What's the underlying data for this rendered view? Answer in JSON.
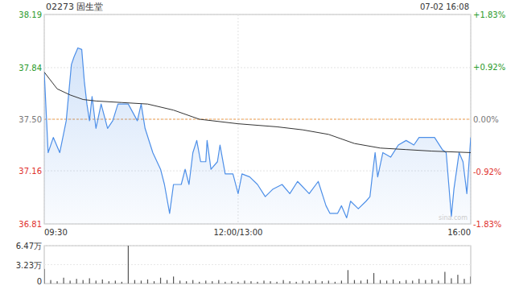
{
  "chart_data": [
    {
      "type": "line",
      "title": "02273 固生堂",
      "subtitle": "07-02 16:08",
      "x": [
        0,
        3,
        7,
        12,
        17,
        21,
        23,
        26,
        29,
        31,
        33,
        35,
        37,
        40,
        44,
        49,
        53,
        57,
        61,
        65,
        72,
        75,
        78,
        84,
        90,
        93,
        97,
        100,
        106,
        109,
        112,
        115,
        118,
        121,
        125,
        126,
        129,
        134,
        136,
        140,
        146,
        150,
        153,
        159,
        165,
        171,
        177,
        184,
        190,
        196,
        205,
        212,
        218,
        221,
        227,
        230,
        234,
        237,
        243,
        249,
        252,
        254,
        256,
        258,
        262,
        268,
        274,
        280,
        286,
        290,
        296,
        302,
        308,
        311,
        313,
        315,
        317,
        321,
        324,
        327,
        330
      ],
      "xlim": [
        0,
        330
      ],
      "xticks": [
        {
          "value": 0,
          "label": "09:30"
        },
        {
          "value": 150,
          "label": "12:00/13:00"
        },
        {
          "value": 330,
          "label": "16:00"
        }
      ],
      "ylim": [
        36.81,
        38.19
      ],
      "yticks": [
        38.19,
        37.84,
        {
          "value": 37.5,
          "label": "37.50"
        },
        37.16,
        36.81
      ],
      "y2lim": [
        -1.83,
        1.83
      ],
      "y2ticks": [
        {
          "value": 1.83,
          "label": "+1.83%"
        },
        {
          "value": 0.92,
          "label": "+0.92%"
        },
        {
          "value": 0,
          "label": "0.00%"
        },
        {
          "value": -0.92,
          "label": "-0.92%"
        },
        {
          "value": -1.83,
          "label": "-1.83%"
        }
      ],
      "grid": true,
      "annotations": [
        "sina.com"
      ],
      "series": [
        {
          "color": "#4d8fe8",
          "values": [
            37.81,
            37.28,
            37.38,
            37.28,
            37.49,
            37.86,
            37.91,
            37.97,
            37.96,
            37.75,
            37.6,
            37.49,
            37.65,
            37.44,
            37.6,
            37.44,
            37.49,
            37.6,
            37.6,
            37.6,
            37.49,
            37.6,
            37.44,
            37.28,
            37.17,
            37.07,
            36.88,
            37.07,
            37.07,
            37.17,
            37.07,
            37.28,
            37.36,
            37.22,
            37.22,
            37.36,
            37.17,
            37.22,
            37.33,
            37.14,
            37.14,
            37.01,
            37.14,
            37.12,
            37.07,
            36.99,
            37.04,
            37.07,
            37.01,
            37.09,
            37.01,
            37.09,
            36.93,
            36.88,
            36.88,
            36.93,
            36.85,
            36.96,
            36.91,
            36.96,
            36.99,
            37.14,
            37.28,
            37.12,
            37.28,
            37.25,
            37.33,
            37.36,
            37.33,
            37.38,
            37.38,
            37.38,
            37.3,
            37.28,
            37.07,
            36.86,
            37.04,
            37.28,
            37.22,
            37.01,
            37.38
          ]
        },
        {
          "color": "#333333",
          "x": [
            0,
            10,
            20,
            30,
            40,
            60,
            80,
            100,
            120,
            150,
            180,
            200,
            220,
            240,
            260,
            280,
            300,
            330
          ],
          "values": [
            37.81,
            37.7,
            37.66,
            37.63,
            37.62,
            37.61,
            37.6,
            37.56,
            37.5,
            37.47,
            37.45,
            37.43,
            37.4,
            37.34,
            37.31,
            37.3,
            37.29,
            37.28
          ]
        }
      ]
    },
    {
      "type": "bar",
      "x": [
        0,
        5,
        10,
        15,
        20,
        25,
        30,
        35,
        40,
        45,
        50,
        55,
        60,
        65,
        70,
        75,
        80,
        85,
        90,
        95,
        100,
        105,
        110,
        115,
        120,
        125,
        130,
        135,
        140,
        145,
        150,
        155,
        160,
        165,
        170,
        175,
        180,
        185,
        190,
        195,
        200,
        205,
        210,
        215,
        220,
        225,
        230,
        235,
        240,
        245,
        250,
        255,
        260,
        265,
        270,
        275,
        280,
        285,
        290,
        295,
        300,
        305,
        310,
        315,
        320,
        325,
        330
      ],
      "xlim": [
        0,
        330
      ],
      "ylim": [
        0,
        6.47
      ],
      "yticks": [
        {
          "value": 6.47,
          "label": "6.47万"
        },
        {
          "value": 3.23,
          "label": "3.23万"
        },
        0
      ],
      "color": "#555555",
      "tick_labels": "y",
      "values": [
        2.5,
        0.6,
        0.4,
        1.0,
        0.5,
        0.8,
        0.6,
        0.9,
        0.5,
        0.7,
        0.4,
        0.5,
        0.3,
        6.47,
        0.6,
        0.5,
        0.7,
        0.4,
        1.0,
        0.6,
        1.2,
        0.5,
        0.4,
        0.6,
        0.3,
        0.5,
        0.4,
        0.6,
        0.3,
        0.4,
        0.3,
        0.5,
        0.4,
        0.3,
        0.5,
        0.4,
        0.3,
        0.6,
        0.4,
        0.3,
        0.5,
        0.4,
        0.6,
        0.4,
        0.5,
        0.3,
        0.5,
        2.3,
        0.6,
        0.5,
        0.7,
        1.8,
        0.6,
        0.5,
        0.7,
        0.4,
        0.6,
        0.5,
        0.8,
        0.6,
        0.7,
        0.5,
        2.0,
        0.9,
        1.5,
        0.8,
        1.2
      ]
    }
  ]
}
